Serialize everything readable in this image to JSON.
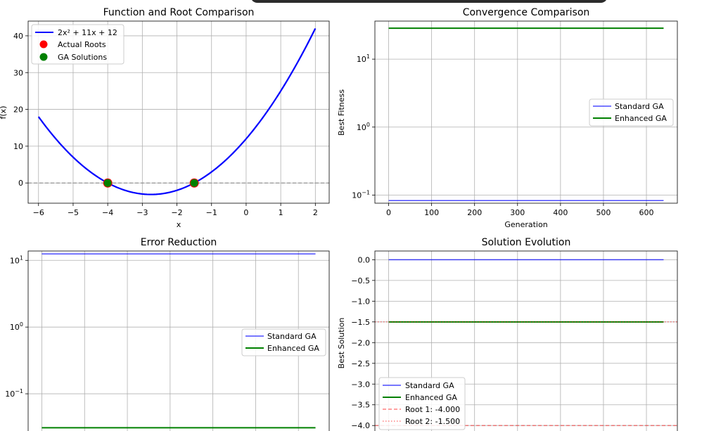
{
  "window_overlay": {
    "color": "#2b2b2b"
  },
  "colors": {
    "blue": "#0000ff",
    "green": "#008000",
    "red": "#ff0000",
    "gray": "#808080",
    "grid": "#b0b0b0",
    "salmon": "#f08080"
  },
  "chart_data": [
    {
      "id": "function",
      "type": "line",
      "title": "Function and Root Comparison",
      "xlabel": "x",
      "ylabel": "f(x)",
      "xlim": [
        -6.3,
        2.4
      ],
      "ylim": [
        -5.5,
        44
      ],
      "xticks": [
        -6,
        -5,
        -4,
        -3,
        -2,
        -1,
        0,
        1,
        2
      ],
      "xtick_labels": [
        "−6",
        "−5",
        "−4",
        "−3",
        "−2",
        "−1",
        "0",
        "1",
        "2"
      ],
      "yticks": [
        0,
        10,
        20,
        30,
        40
      ],
      "ytick_labels": [
        "0",
        "10",
        "20",
        "30",
        "40"
      ],
      "grid": true,
      "legend_position": "upper-left",
      "series": [
        {
          "name": "2x² + 11x + 12",
          "kind": "curve",
          "coeffs": [
            2,
            11,
            12
          ],
          "x_range": [
            -6,
            2
          ],
          "color": "#0000ff"
        },
        {
          "name": "Actual Roots",
          "kind": "points",
          "x": [
            -4,
            -1.5
          ],
          "y": [
            0,
            0
          ],
          "color": "#ff0000"
        },
        {
          "name": "GA Solutions",
          "kind": "points",
          "x": [
            -4,
            -1.5
          ],
          "y": [
            0,
            0
          ],
          "color": "#008000"
        }
      ],
      "hlines": [
        {
          "y": 0,
          "style": "dashed",
          "color": "#808080"
        }
      ]
    },
    {
      "id": "convergence",
      "type": "line",
      "title": "Convergence Comparison",
      "xlabel": "Generation",
      "ylabel": "Best Fitness",
      "yscale": "log",
      "xlim": [
        -32,
        672
      ],
      "ylim_log10": [
        -1.12,
        1.56
      ],
      "xticks": [
        0,
        100,
        200,
        300,
        400,
        500,
        600
      ],
      "xtick_labels": [
        "0",
        "100",
        "200",
        "300",
        "400",
        "500",
        "600"
      ],
      "yticks_log10": [
        -1,
        0,
        1
      ],
      "ytick_labels": [
        "10",
        "10",
        "10"
      ],
      "ytick_exponents": [
        "−1",
        "0",
        "1"
      ],
      "grid": true,
      "legend_position": "center-right",
      "series": [
        {
          "name": "Standard GA",
          "x": [
            0,
            640
          ],
          "y": [
            0.083,
            0.083
          ],
          "color": "#0000ff",
          "alpha": 0.7
        },
        {
          "name": "Enhanced GA",
          "x": [
            0,
            640
          ],
          "y": [
            28.5,
            28.5
          ],
          "color": "#008000"
        }
      ]
    },
    {
      "id": "error",
      "type": "line",
      "title": "Error Reduction",
      "yscale": "log",
      "xlim": [
        -32,
        672
      ],
      "ylim_log10": [
        -1.6,
        1.14
      ],
      "yticks_log10": [
        -1,
        0,
        1
      ],
      "ytick_labels": [
        "10",
        "10",
        "10"
      ],
      "ytick_exponents": [
        "−1",
        "0",
        "1"
      ],
      "xgrid": [
        0,
        100,
        200,
        300,
        400,
        500,
        600
      ],
      "grid": true,
      "legend_position": "center-right",
      "series": [
        {
          "name": "Standard GA",
          "x": [
            0,
            640
          ],
          "y": [
            12.5,
            12.5
          ],
          "color": "#0000ff",
          "alpha": 0.7
        },
        {
          "name": "Enhanced GA",
          "x": [
            0,
            640
          ],
          "y": [
            0.031,
            0.031
          ],
          "color": "#008000"
        }
      ]
    },
    {
      "id": "solution",
      "type": "line",
      "title": "Solution Evolution",
      "ylabel": "Best Solution",
      "xlim": [
        -32,
        672
      ],
      "ylim": [
        -4.2,
        0.21
      ],
      "yticks": [
        0.0,
        -0.5,
        -1.0,
        -1.5,
        -2.0,
        -2.5,
        -3.0,
        -3.5,
        -4.0
      ],
      "ytick_labels": [
        "0.0",
        "−0.5",
        "−1.0",
        "−1.5",
        "−2.0",
        "−2.5",
        "−3.0",
        "−3.5",
        "−4.0"
      ],
      "xgrid": [
        0,
        100,
        200,
        300,
        400,
        500,
        600
      ],
      "grid": true,
      "legend_position": "lower-left",
      "series": [
        {
          "name": "Standard GA",
          "x": [
            0,
            640
          ],
          "y": [
            0.0,
            0.0
          ],
          "color": "#0000ff",
          "alpha": 0.7
        },
        {
          "name": "Enhanced GA",
          "x": [
            0,
            640
          ],
          "y": [
            -1.5,
            -1.5
          ],
          "color": "#008000"
        },
        {
          "name": "Root 1: -4.000",
          "hline": -4.0,
          "style": "dashed",
          "color": "#ff0000",
          "alpha": 0.6
        },
        {
          "name": "Root 2: -1.500",
          "hline": -1.5,
          "style": "dotted",
          "color": "#ff0000",
          "alpha": 0.6
        }
      ]
    }
  ]
}
